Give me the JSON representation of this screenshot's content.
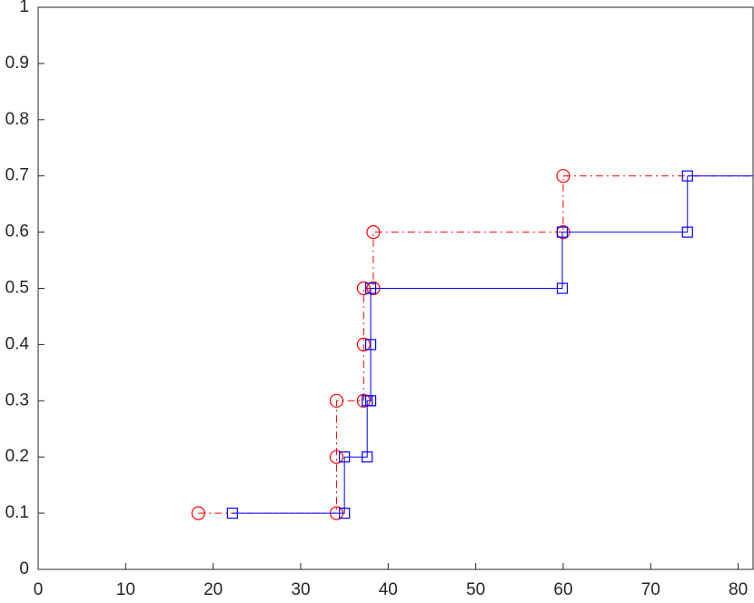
{
  "chart_data": {
    "type": "line",
    "xlim": [
      0,
      81.7
    ],
    "ylim": [
      0,
      1
    ],
    "xticks": [
      0,
      10,
      20,
      30,
      40,
      50,
      60,
      70,
      80
    ],
    "yticks": [
      0,
      0.1,
      0.2,
      0.3,
      0.4,
      0.5,
      0.6,
      0.7,
      0.8,
      0.9,
      1
    ],
    "series": [
      {
        "color": "#ff0000",
        "marker": "circle",
        "linestyle": "dashdot",
        "x": [
          18.3,
          34.1,
          34.1,
          34.1,
          37.2,
          37.2,
          37.2,
          38.3,
          38.3,
          60.0,
          60.0
        ],
        "values": [
          0.1,
          0.1,
          0.2,
          0.3,
          0.3,
          0.4,
          0.5,
          0.5,
          0.6,
          0.6,
          0.7
        ]
      },
      {
        "color": "#0000ff",
        "marker": "square",
        "linestyle": "solid",
        "x": [
          22.2,
          35.0,
          35.0,
          37.6,
          37.6,
          38.0,
          38.0,
          38.0,
          59.9,
          59.9,
          74.2,
          74.2
        ],
        "values": [
          0.1,
          0.1,
          0.2,
          0.2,
          0.3,
          0.3,
          0.4,
          0.5,
          0.5,
          0.6,
          0.6,
          0.7
        ]
      }
    ]
  }
}
